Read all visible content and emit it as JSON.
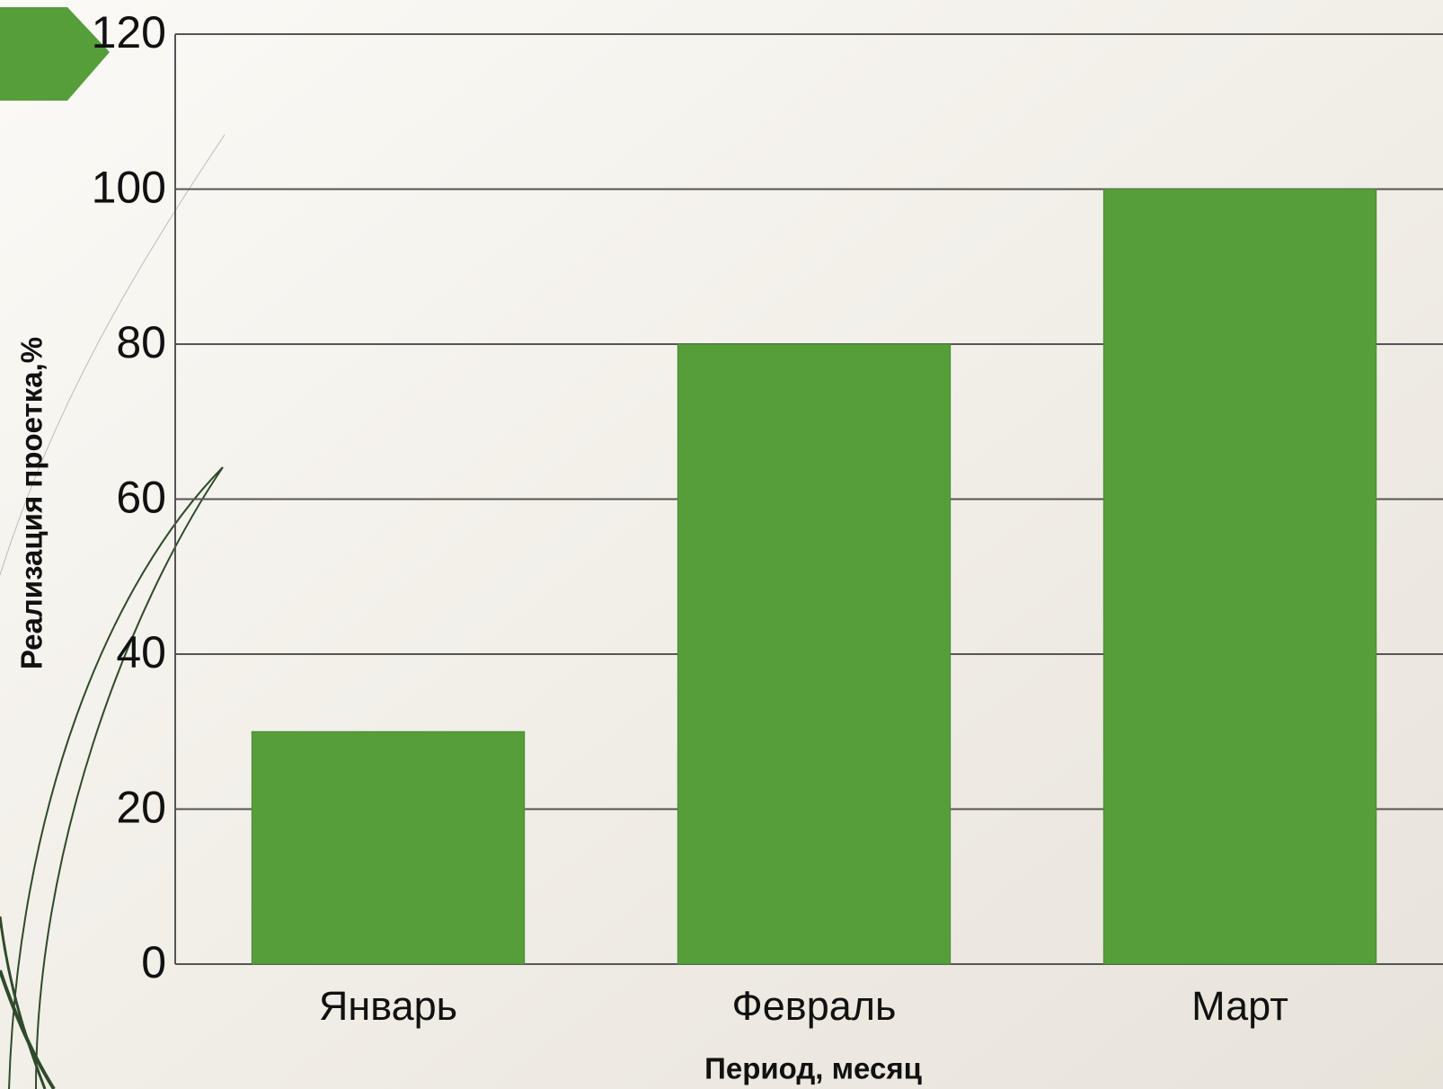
{
  "chart_data": {
    "type": "bar",
    "categories": [
      "Январь",
      "Февраль",
      "Март"
    ],
    "values": [
      30,
      80,
      100
    ],
    "color": "#559e3a",
    "ylim": [
      0,
      120
    ],
    "yticks": [
      0,
      20,
      40,
      60,
      80,
      100,
      120
    ],
    "grid": true,
    "ylabel": "Реализация проетка,%",
    "xlabel": "Период, месяц"
  }
}
